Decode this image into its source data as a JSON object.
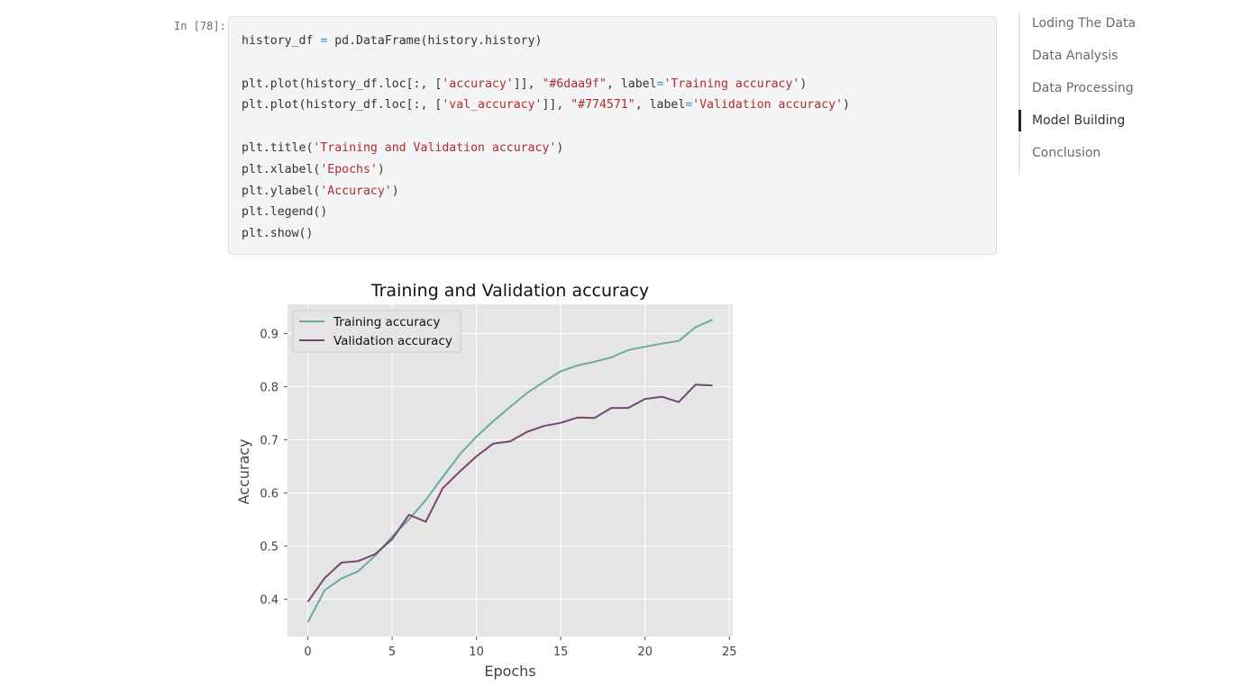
{
  "cell": {
    "prompt": "In [78]:",
    "code_lines": [
      [
        {
          "t": "history_df "
        },
        {
          "t": "=",
          "c": "op"
        },
        {
          "t": " pd.DataFrame(history.history)"
        }
      ],
      [],
      [
        {
          "t": "plt.plot(history_df.loc[:, ["
        },
        {
          "t": "'accuracy'",
          "c": "str"
        },
        {
          "t": "]], "
        },
        {
          "t": "\"#6daa9f\"",
          "c": "str"
        },
        {
          "t": ", label"
        },
        {
          "t": "=",
          "c": "op"
        },
        {
          "t": "'Training accuracy'",
          "c": "str"
        },
        {
          "t": ")"
        }
      ],
      [
        {
          "t": "plt.plot(history_df.loc[:, ["
        },
        {
          "t": "'val_accuracy'",
          "c": "str"
        },
        {
          "t": "]], "
        },
        {
          "t": "\"#774571\"",
          "c": "str"
        },
        {
          "t": ", label"
        },
        {
          "t": "=",
          "c": "op"
        },
        {
          "t": "'Validation accuracy'",
          "c": "str"
        },
        {
          "t": ")"
        }
      ],
      [],
      [
        {
          "t": "plt.title("
        },
        {
          "t": "'Training and Validation accuracy'",
          "c": "str"
        },
        {
          "t": ")"
        }
      ],
      [
        {
          "t": "plt.xlabel("
        },
        {
          "t": "'Epochs'",
          "c": "str"
        },
        {
          "t": ")"
        }
      ],
      [
        {
          "t": "plt.ylabel("
        },
        {
          "t": "'Accuracy'",
          "c": "str"
        },
        {
          "t": ")"
        }
      ],
      [
        {
          "t": "plt.legend()"
        }
      ],
      [
        {
          "t": "plt.show()"
        }
      ]
    ]
  },
  "toc": {
    "items": [
      {
        "label": "Loding The Data",
        "active": false
      },
      {
        "label": "Data Analysis",
        "active": false
      },
      {
        "label": "Data Processing",
        "active": false
      },
      {
        "label": "Model Building",
        "active": true
      },
      {
        "label": "Conclusion",
        "active": false
      }
    ]
  },
  "chart_data": {
    "type": "line",
    "title": "Training and Validation accuracy",
    "xlabel": "Epochs",
    "ylabel": "Accuracy",
    "xlim": [
      -1.2,
      25.2
    ],
    "ylim": [
      0.33,
      0.955
    ],
    "xticks": [
      0,
      5,
      10,
      15,
      20,
      25
    ],
    "yticks": [
      0.4,
      0.5,
      0.6,
      0.7,
      0.8,
      0.9
    ],
    "grid": true,
    "legend": "upper left",
    "x": [
      0,
      1,
      2,
      3,
      4,
      5,
      6,
      7,
      8,
      9,
      10,
      11,
      12,
      13,
      14,
      15,
      16,
      17,
      18,
      19,
      20,
      21,
      22,
      23,
      24
    ],
    "series": [
      {
        "name": "Training accuracy",
        "color": "#6daa9f",
        "values": [
          0.357,
          0.417,
          0.439,
          0.453,
          0.482,
          0.518,
          0.55,
          0.587,
          0.63,
          0.672,
          0.706,
          0.735,
          0.762,
          0.788,
          0.809,
          0.829,
          0.84,
          0.847,
          0.855,
          0.869,
          0.875,
          0.881,
          0.886,
          0.912,
          0.926
        ]
      },
      {
        "name": "Validation accuracy",
        "color": "#774571",
        "values": [
          0.395,
          0.44,
          0.469,
          0.472,
          0.485,
          0.513,
          0.559,
          0.546,
          0.609,
          0.64,
          0.669,
          0.693,
          0.697,
          0.715,
          0.726,
          0.732,
          0.742,
          0.741,
          0.76,
          0.76,
          0.777,
          0.781,
          0.771,
          0.804,
          0.802
        ]
      }
    ]
  }
}
